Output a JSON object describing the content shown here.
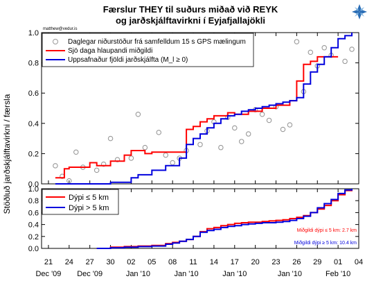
{
  "title_line1": "Færslur THEY til suðurs miðað við REYK",
  "title_line2": "og jarðskjálftavirkni í Eyjafjallajökli",
  "watermark": "matthew@vedur.is",
  "ylabel": "Stöðluð jarðskjálftavirkni / færsla",
  "logo": "vedur-logo-icon",
  "colors": {
    "red": "#ff0000",
    "blue": "#0000dd",
    "gray": "#999999"
  },
  "chart_data": [
    {
      "type": "line",
      "panel": "top",
      "xlim": [
        20,
        66
      ],
      "ylim": [
        0,
        1
      ],
      "yticks": [
        "0.0",
        "0.2",
        "0.4",
        "0.6",
        "0.8",
        "1.0"
      ],
      "legend_position": "top-left",
      "legend": [
        "Daglegar niðurstöður frá samfelldum 15 s GPS mælingum",
        "Sjö daga hlaupandi miðgildi",
        "Uppsafnaður fjöldi jarðskjálfta (M_l ≥ 0)"
      ],
      "scatter": {
        "name": "Daglegar niðurstöður frá samfelldum 15 s GPS mælingum",
        "x": [
          22,
          23,
          24,
          25,
          26,
          28,
          29,
          30,
          31,
          33,
          34,
          35,
          37,
          38,
          39,
          40,
          41,
          43,
          44,
          45,
          46,
          47,
          48,
          49,
          50,
          51,
          52,
          53,
          54,
          55,
          56,
          57,
          58,
          59,
          60,
          61,
          62,
          64,
          65
        ],
        "y": [
          0.12,
          0.05,
          0.02,
          0.21,
          0.11,
          0.09,
          0.13,
          0.3,
          0.16,
          0.17,
          0.46,
          0.24,
          0.34,
          0.19,
          0.14,
          0.17,
          0.22,
          0.26,
          0.35,
          0.41,
          0.24,
          0.44,
          0.37,
          0.28,
          0.33,
          0.49,
          0.46,
          0.42,
          0.51,
          0.36,
          0.39,
          0.94,
          0.61,
          0.87,
          0.78,
          0.9,
          0.85,
          0.81,
          0.89
        ]
      },
      "series": [
        {
          "name": "Sjö daga hlaupandi miðgildi",
          "x": [
            22,
            23,
            23.3,
            24,
            25,
            26,
            27,
            28,
            29,
            30,
            31,
            32,
            33,
            34,
            35,
            36,
            37,
            38,
            39,
            40,
            41,
            42,
            43,
            44,
            45,
            46,
            47,
            48,
            49,
            50,
            51,
            52,
            53,
            54,
            55,
            56,
            57,
            58,
            59,
            60,
            61,
            62,
            63
          ],
          "y": [
            0.04,
            0.04,
            0.1,
            0.11,
            0.11,
            0.11,
            0.14,
            0.12,
            0.12,
            0.15,
            0.15,
            0.19,
            0.22,
            0.22,
            0.2,
            0.21,
            0.21,
            0.21,
            0.21,
            0.21,
            0.36,
            0.38,
            0.41,
            0.43,
            0.45,
            0.45,
            0.47,
            0.46,
            0.46,
            0.48,
            0.48,
            0.5,
            0.5,
            0.52,
            0.52,
            0.55,
            0.68,
            0.79,
            0.81,
            0.84,
            0.84,
            0.84,
            0.84
          ]
        },
        {
          "name": "Uppsafnaður fjöldi jarðskjálfta (M_l ≥ 0)",
          "x": [
            22,
            30,
            33,
            34,
            36,
            38,
            40,
            41,
            42,
            43,
            44,
            45,
            46,
            47,
            48,
            49,
            50,
            51,
            52,
            53,
            54,
            55,
            56,
            57,
            58,
            59,
            60,
            61,
            62,
            63,
            64,
            65
          ],
          "y": [
            0,
            0.01,
            0.04,
            0.06,
            0.09,
            0.12,
            0.17,
            0.26,
            0.3,
            0.33,
            0.37,
            0.4,
            0.43,
            0.45,
            0.46,
            0.48,
            0.49,
            0.5,
            0.51,
            0.52,
            0.53,
            0.54,
            0.55,
            0.57,
            0.66,
            0.74,
            0.79,
            0.84,
            0.9,
            0.96,
            0.98,
            1.0
          ]
        }
      ]
    },
    {
      "type": "line",
      "panel": "bottom",
      "xlim": [
        20,
        66
      ],
      "ylim": [
        0,
        1
      ],
      "yticks": [
        "0.0",
        "0.2",
        "0.4",
        "0.6",
        "0.8",
        "1.0"
      ],
      "xtick_labels": [
        "21",
        "24",
        "27",
        "30",
        "02",
        "05",
        "08",
        "11",
        "14",
        "17",
        "20",
        "23",
        "26",
        "29",
        "01",
        "04"
      ],
      "xtick_positions": [
        21,
        24,
        27,
        30,
        33,
        36,
        39,
        42,
        45,
        48,
        51,
        54,
        57,
        60,
        63,
        66
      ],
      "month_labels": [
        "Dec '09",
        "Dec '09",
        "Jan '10",
        "Jan '10",
        "Jan '10",
        "Jan '10",
        "Feb '10"
      ],
      "month_label_positions": [
        21,
        27,
        34,
        41,
        48,
        56,
        63
      ],
      "legend_position": "top-left",
      "legend": [
        "Dýpi  ≤ 5 km",
        "Dýpi  > 5 km"
      ],
      "annotations": [
        "Miðgildi dýpi ≤ 5 km: 2.7 km",
        "Miðgildi dýpi ≥ 5 km: 10.4 km"
      ],
      "series": [
        {
          "name": "Dýpi  ≤ 5 km",
          "x": [
            28,
            30,
            32,
            34,
            36,
            38,
            39,
            40,
            41,
            42,
            43,
            44,
            45,
            46,
            47,
            48,
            49,
            50,
            51,
            52,
            53,
            54,
            55,
            56,
            57,
            58,
            59,
            60,
            61,
            62,
            63,
            64,
            65
          ],
          "y": [
            0,
            0.02,
            0.03,
            0.04,
            0.05,
            0.08,
            0.1,
            0.12,
            0.15,
            0.2,
            0.28,
            0.33,
            0.35,
            0.38,
            0.4,
            0.42,
            0.43,
            0.44,
            0.44,
            0.45,
            0.46,
            0.47,
            0.48,
            0.5,
            0.52,
            0.55,
            0.6,
            0.66,
            0.72,
            0.8,
            0.9,
            0.97,
            1.0
          ]
        },
        {
          "name": "Dýpi  > 5 km",
          "x": [
            28,
            30,
            32,
            34,
            36,
            38,
            39,
            40,
            41,
            42,
            43,
            44,
            45,
            46,
            47,
            48,
            49,
            50,
            51,
            52,
            53,
            54,
            55,
            56,
            57,
            58,
            59,
            60,
            61,
            62,
            63,
            64,
            65
          ],
          "y": [
            0,
            0.01,
            0.02,
            0.03,
            0.04,
            0.07,
            0.09,
            0.12,
            0.15,
            0.2,
            0.27,
            0.3,
            0.32,
            0.35,
            0.37,
            0.38,
            0.4,
            0.41,
            0.42,
            0.43,
            0.43,
            0.44,
            0.45,
            0.47,
            0.5,
            0.54,
            0.6,
            0.68,
            0.75,
            0.82,
            0.92,
            0.98,
            1.0
          ]
        }
      ]
    }
  ]
}
